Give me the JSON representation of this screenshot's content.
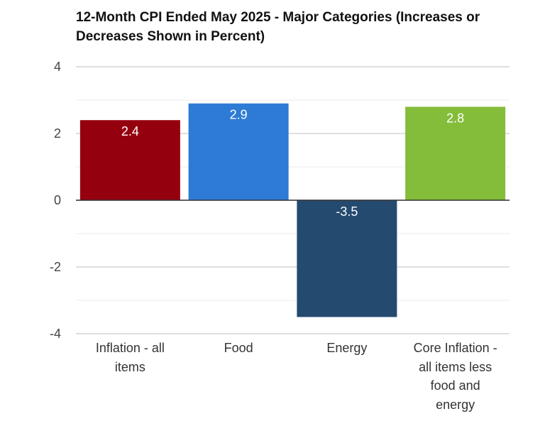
{
  "title_lines": [
    "12-Month CPI Ended May 2025 - Major Categories (Increases or",
    "Decreases Shown in Percent)"
  ],
  "chart_data": {
    "type": "bar",
    "title": "12-Month CPI Ended May 2025 - Major Categories (Increases or Decreases Shown in Percent)",
    "categories": [
      "Inflation - all items",
      "Food",
      "Energy",
      "Core Inflation - all items less food and energy"
    ],
    "category_label_lines": [
      [
        "Inflation - all",
        "items"
      ],
      [
        "Food"
      ],
      [
        "Energy"
      ],
      [
        "Core Inflation -",
        "all items less",
        "food and",
        "energy"
      ]
    ],
    "values": [
      2.4,
      2.9,
      -3.5,
      2.8
    ],
    "value_labels": [
      "2.4",
      "2.9",
      "-3.5",
      "2.8"
    ],
    "colors": [
      "#95000e",
      "#2e7bd6",
      "#244a70",
      "#84bd3a"
    ],
    "xlabel": "",
    "ylabel": "",
    "ylim": [
      -4,
      4
    ],
    "y_ticks": [
      4,
      2,
      0,
      -2,
      -4
    ],
    "y_tick_labels": [
      "4",
      "2",
      "0",
      "-2",
      "-4"
    ],
    "grid": true,
    "legend": "none"
  }
}
